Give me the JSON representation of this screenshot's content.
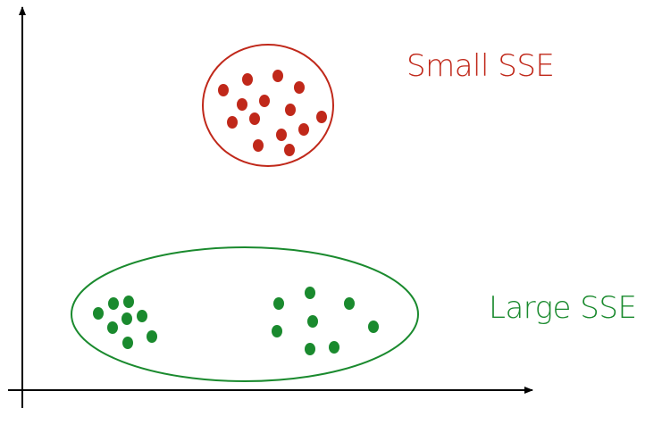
{
  "colors": {
    "axis": "#000000",
    "small_cluster": "#c0281a",
    "large_cluster": "#1a8a2e"
  },
  "labels": {
    "small": "Small SSE",
    "large": "Large SSE"
  }
}
